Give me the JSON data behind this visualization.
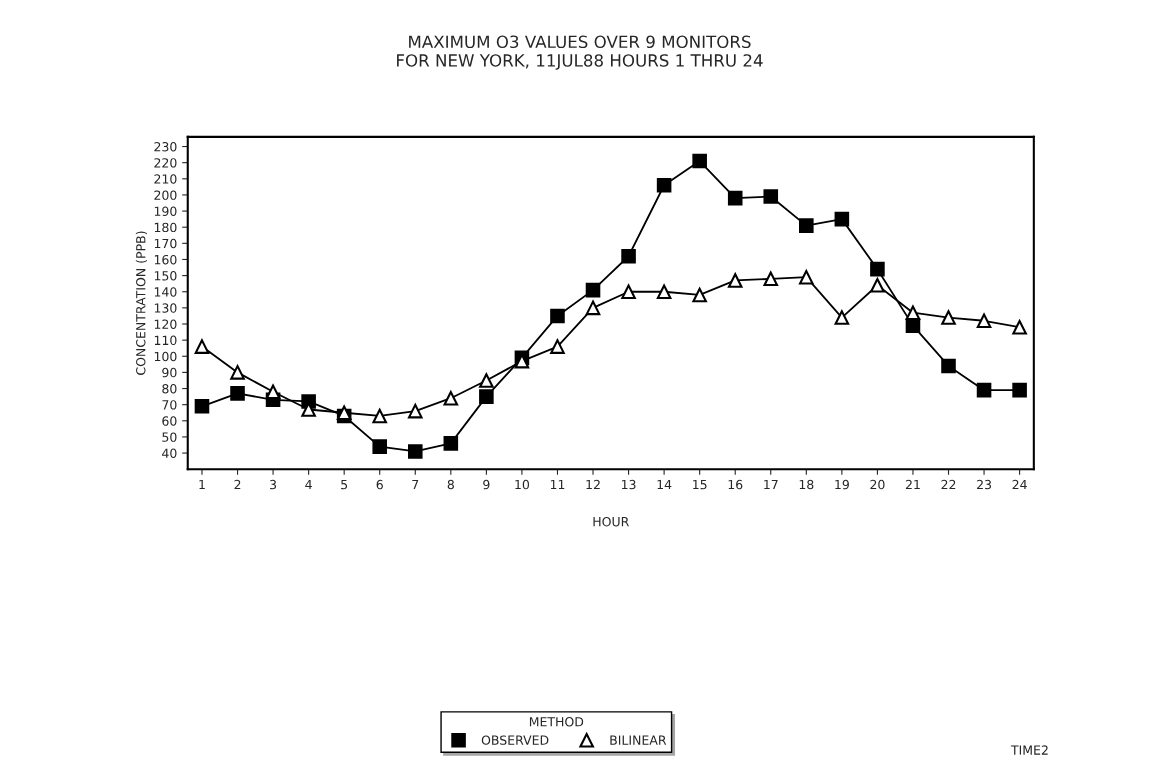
{
  "chart_data": {
    "type": "line",
    "title": "MAXIMUM O3 VALUES OVER 9 MONITORS\nFOR NEW YORK, 11JUL88 HOURS 1 THRU 24",
    "xlabel": "HOUR",
    "ylabel": "CONCENTRATION (PPB)",
    "legend_title": "METHOD",
    "legend": "bottom",
    "categories": [
      "1",
      "2",
      "3",
      "4",
      "5",
      "6",
      "7",
      "8",
      "9",
      "10",
      "11",
      "12",
      "13",
      "14",
      "15",
      "16",
      "17",
      "18",
      "19",
      "20",
      "21",
      "22",
      "23",
      "24"
    ],
    "series": [
      {
        "name": "OBSERVED",
        "color": "#000000",
        "marker": "square",
        "values": [
          69,
          77,
          73,
          72,
          63,
          44,
          41,
          46,
          75,
          99,
          125,
          141,
          162,
          206,
          221,
          198,
          199,
          181,
          185,
          154,
          119,
          94,
          79,
          79
        ]
      },
      {
        "name": "BILINEAR",
        "color": "#000000",
        "marker": "triangle",
        "values": [
          106,
          90,
          78,
          67,
          65,
          63,
          66,
          74,
          85,
          97,
          106,
          130,
          140,
          140,
          138,
          147,
          148,
          149,
          124,
          144,
          127,
          124,
          122,
          118
        ]
      }
    ],
    "ylim": [
      30,
      236
    ],
    "yticks": [
      40,
      50,
      60,
      70,
      80,
      90,
      100,
      110,
      120,
      130,
      140,
      150,
      160,
      170,
      180,
      190,
      200,
      210,
      220,
      230
    ],
    "grid": false,
    "annotations": [
      "TIME2"
    ]
  }
}
